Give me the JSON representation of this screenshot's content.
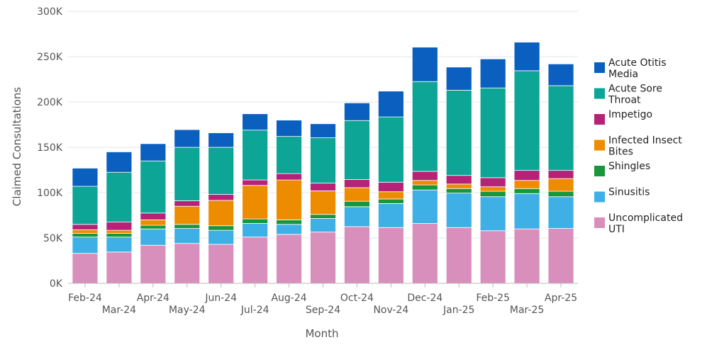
{
  "chart_data": {
    "type": "bar",
    "stacked": true,
    "title": "",
    "xlabel": "Month",
    "ylabel": "Claimed Consultations",
    "ylim": [
      0,
      300000
    ],
    "yticks": [
      0,
      50000,
      100000,
      150000,
      200000,
      250000,
      300000
    ],
    "ytick_labels": [
      "0K",
      "50K",
      "100K",
      "150K",
      "200K",
      "250K",
      "300K"
    ],
    "categories": [
      "Feb-24",
      "Mar-24",
      "Apr-24",
      "May-24",
      "Jun-24",
      "Jul-24",
      "Aug-24",
      "Sep-24",
      "Oct-24",
      "Nov-24",
      "Dec-24",
      "Jan-25",
      "Feb-25",
      "Mar-25",
      "Apr-25"
    ],
    "legend_position": "right",
    "series": [
      {
        "name": "Uncomplicated UTI",
        "legend_lines": [
          "Uncomplicated",
          "UTI"
        ],
        "color": "#d98fbb",
        "values": [
          33000,
          34500,
          42000,
          44000,
          43000,
          51000,
          54000,
          56500,
          62500,
          61500,
          66000,
          61500,
          58000,
          60000,
          60500
        ]
      },
      {
        "name": "Sinusitis",
        "legend_lines": [
          "Sinusitis"
        ],
        "color": "#3eb0e6",
        "values": [
          18000,
          16500,
          18000,
          16500,
          15500,
          15000,
          11000,
          15000,
          22000,
          26500,
          37000,
          38000,
          37500,
          39000,
          35000
        ]
      },
      {
        "name": "Shingles",
        "legend_lines": [
          "Shingles"
        ],
        "color": "#18963c",
        "values": [
          4000,
          4000,
          4000,
          4500,
          5000,
          5000,
          5000,
          4500,
          6000,
          5000,
          5500,
          5000,
          6000,
          5500,
          6000
        ]
      },
      {
        "name": "Infected Insect Bites",
        "legend_lines": [
          "Infected Insect",
          "Bites"
        ],
        "color": "#ee8c00",
        "values": [
          4000,
          3500,
          6000,
          20000,
          28000,
          37000,
          44000,
          26000,
          15000,
          8000,
          5000,
          5000,
          5000,
          9000,
          14000
        ]
      },
      {
        "name": "Impetigo",
        "legend_lines": [
          "Impetigo"
        ],
        "color": "#b52277",
        "values": [
          6000,
          9000,
          7500,
          6000,
          6500,
          6000,
          7000,
          8500,
          9000,
          10500,
          10000,
          9500,
          10000,
          11000,
          9000
        ]
      },
      {
        "name": "Acute Sore Throat",
        "legend_lines": [
          "Acute Sore",
          "Throat"
        ],
        "color": "#0ca596",
        "values": [
          42000,
          55000,
          57500,
          59000,
          52000,
          55000,
          41000,
          50000,
          65000,
          72000,
          99000,
          94000,
          99000,
          110000,
          93500
        ]
      },
      {
        "name": "Acute Otitis Media",
        "legend_lines": [
          "Acute Otitis",
          "Media"
        ],
        "color": "#0a5fbf",
        "values": [
          20000,
          22500,
          19000,
          19500,
          16000,
          18000,
          18000,
          15500,
          19500,
          28500,
          38000,
          25500,
          32000,
          31500,
          24000
        ]
      }
    ]
  }
}
